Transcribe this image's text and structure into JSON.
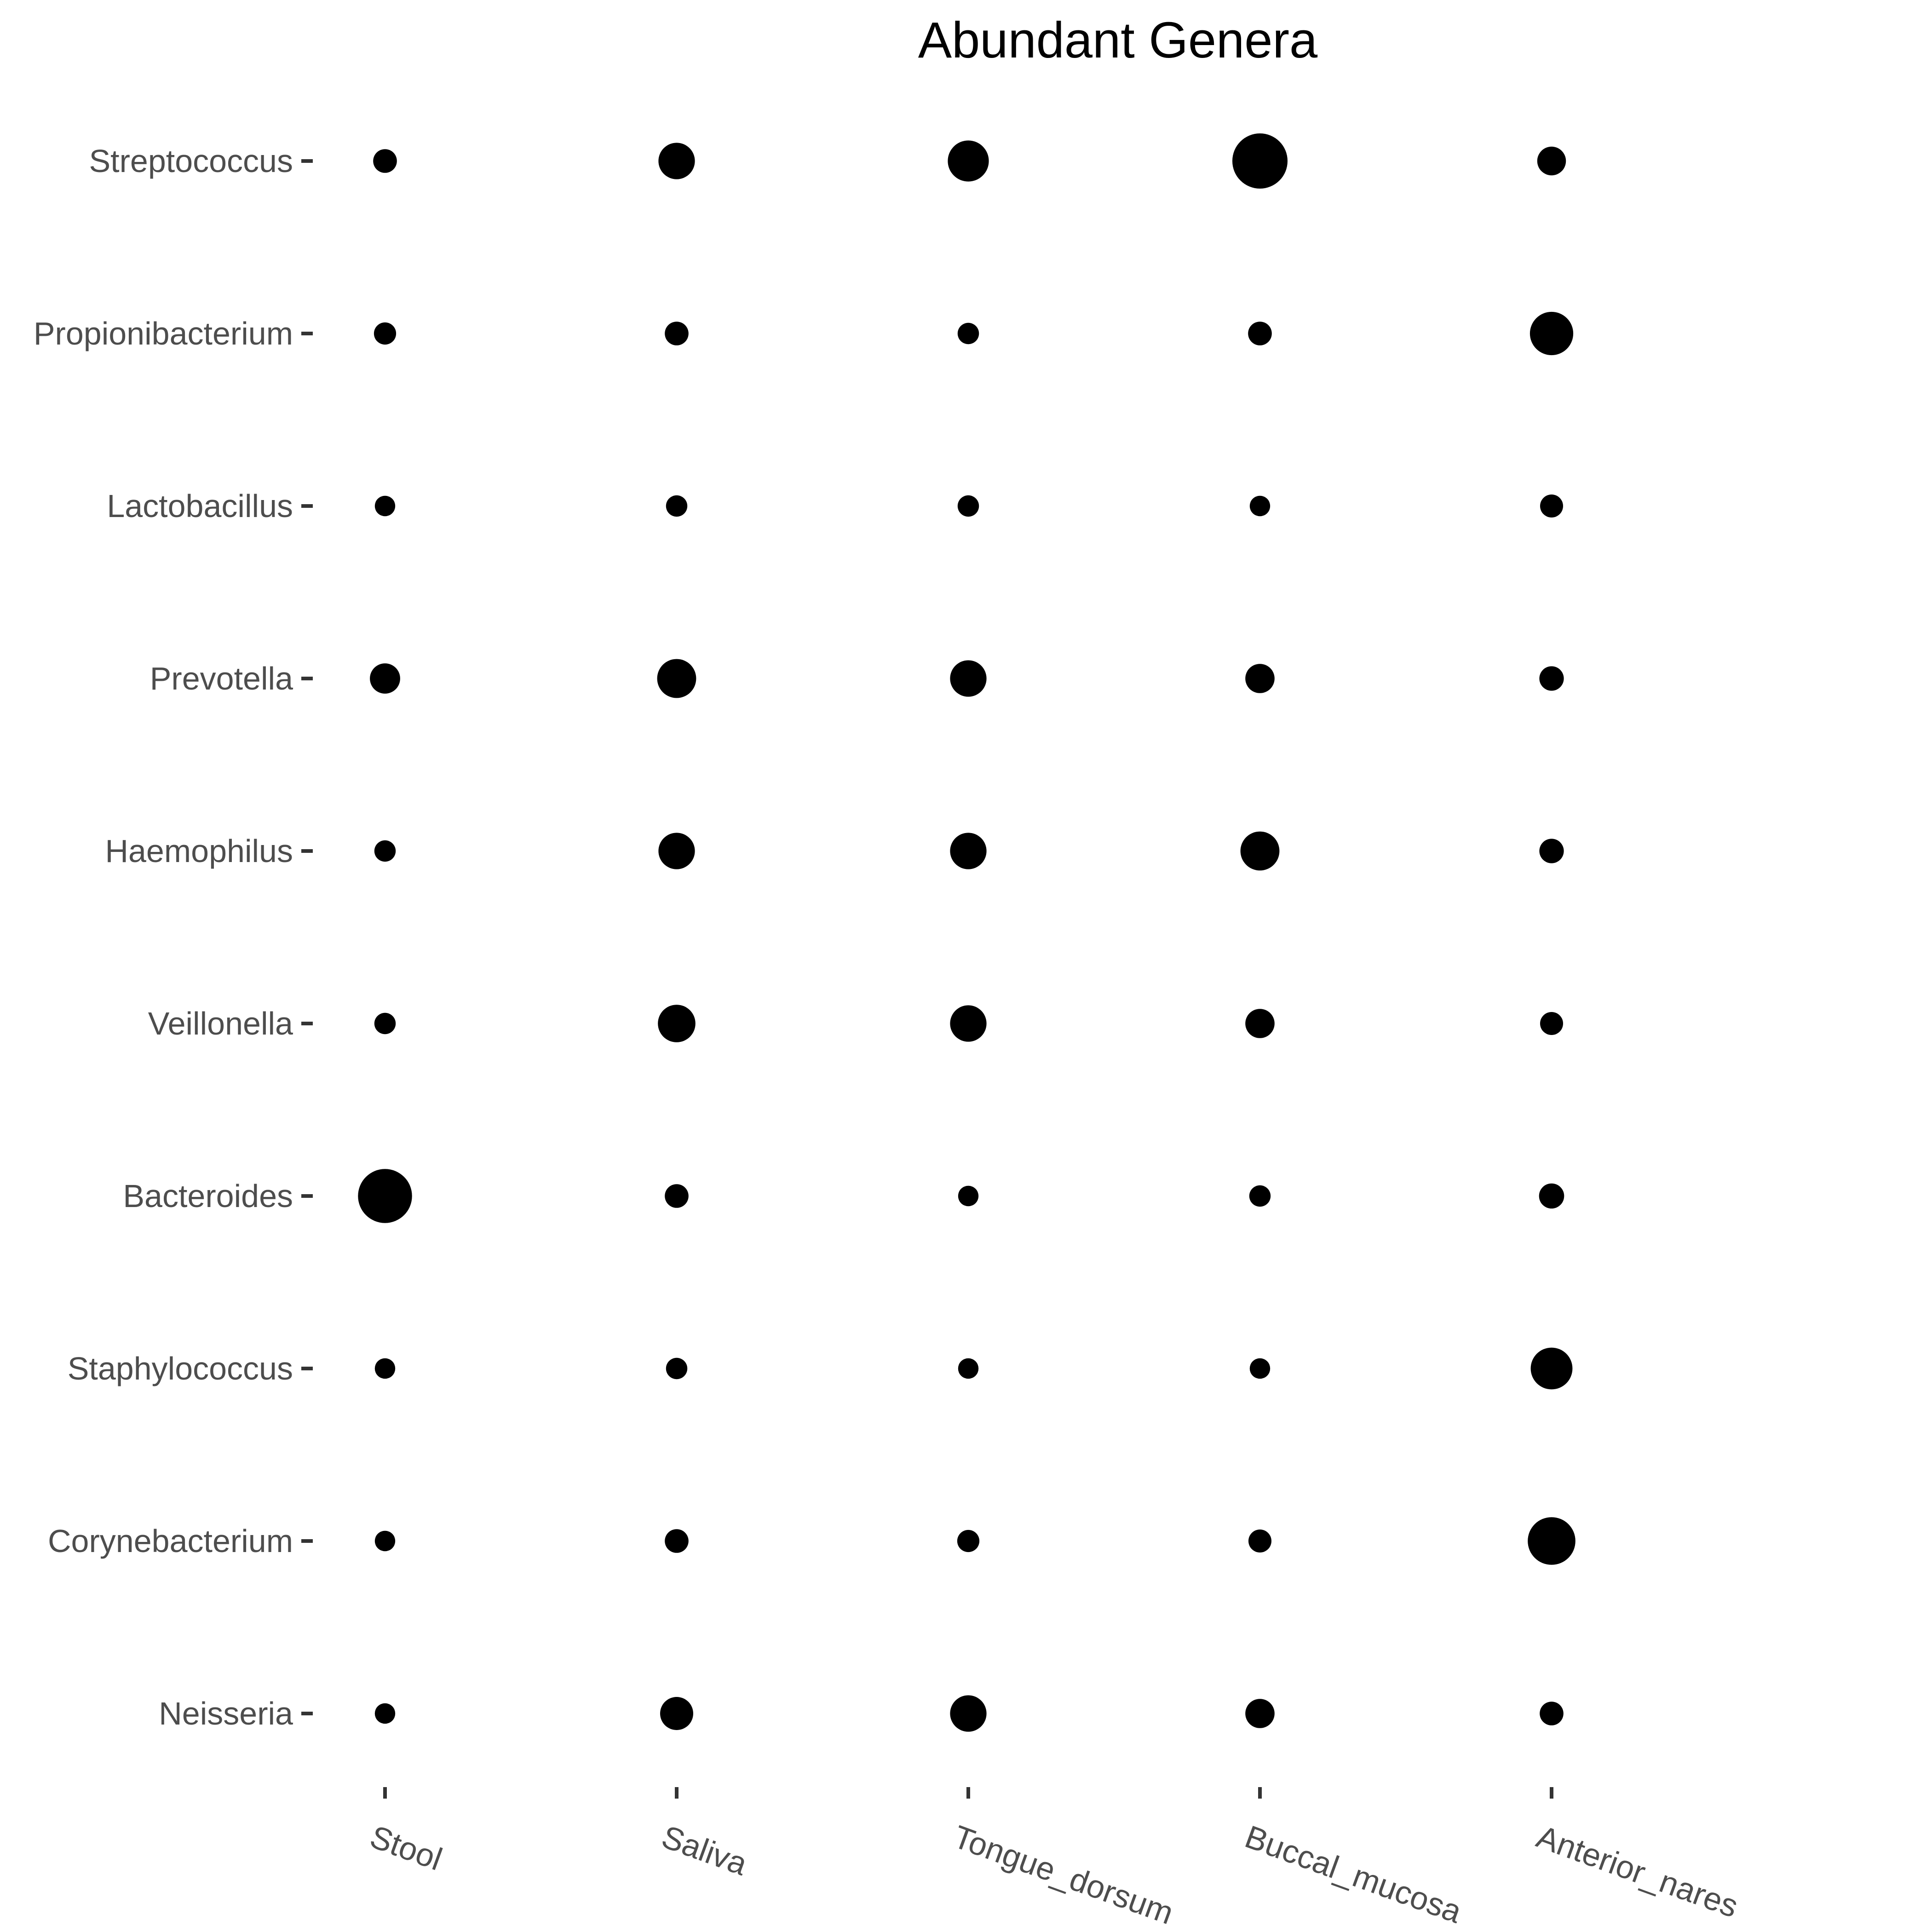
{
  "chart_data": {
    "type": "scatter",
    "title": "Abundant Genera",
    "xlabel": "",
    "ylabel": "",
    "x_categories": [
      "Stool",
      "Saliva",
      "Tongue_dorsum",
      "Buccal_mucosa",
      "Anterior_nares"
    ],
    "y_categories": [
      "Streptococcus",
      "Propionibacterium",
      "Lactobacillus",
      "Prevotella",
      "Haemophilus",
      "Veillonella",
      "Bacteroides",
      "Staphylococcus",
      "Corynebacterium",
      "Neisseria"
    ],
    "size_encoding": "relative abundance",
    "size_values": [
      [
        1.0,
        3.5,
        4.8,
        10.0,
        1.8
      ],
      [
        0.8,
        1.0,
        0.7,
        1.0,
        5.5
      ],
      [
        0.6,
        0.7,
        0.7,
        0.6,
        0.9
      ],
      [
        2.1,
        4.2,
        3.5,
        1.9,
        1.1
      ],
      [
        0.7,
        3.5,
        3.5,
        4.2,
        1.1
      ],
      [
        0.7,
        3.8,
        3.5,
        1.9,
        0.9
      ],
      [
        9.5,
        1.0,
        0.6,
        0.7,
        1.2
      ],
      [
        0.6,
        0.7,
        0.6,
        0.6,
        5.0
      ],
      [
        0.6,
        1.0,
        0.8,
        0.9,
        7.0
      ],
      [
        0.6,
        2.7,
        3.5,
        1.9,
        1.0
      ]
    ],
    "legend": "none",
    "grid": false
  }
}
